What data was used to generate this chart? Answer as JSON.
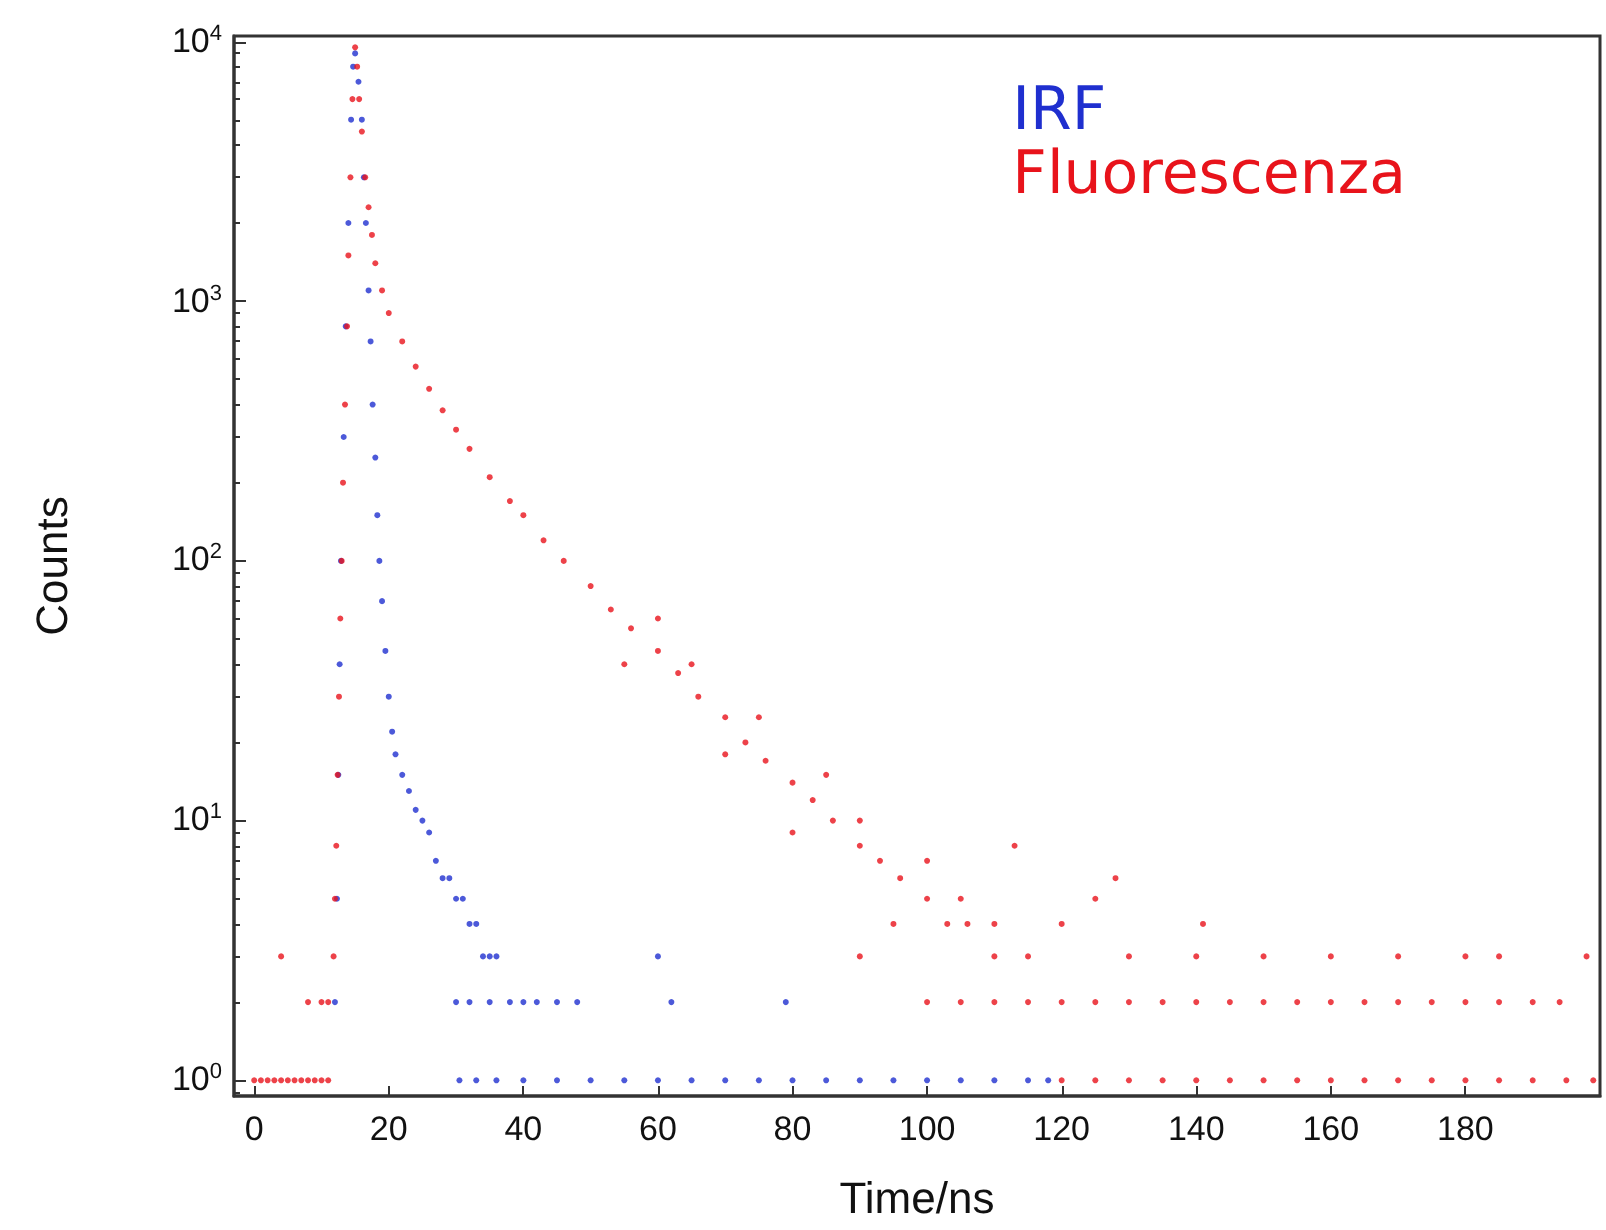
{
  "chart_data": {
    "type": "scatter",
    "xlabel": "Time/ns",
    "ylabel": "Counts",
    "log": "y",
    "grid": false,
    "legend": "top right",
    "marker": "circle",
    "xlim": [
      -3,
      200
    ],
    "xticks": [
      0,
      20,
      40,
      60,
      80,
      100,
      120,
      140,
      160,
      180
    ],
    "ylim": [
      0.87,
      10500
    ],
    "yticks": [
      {
        "value": 1,
        "label": "10$^{0}$"
      },
      {
        "value": 10,
        "label": "10$^{1}$"
      },
      {
        "value": 100,
        "label": "10$^{2}$"
      },
      {
        "value": 1000,
        "label": "10$^{3}$"
      },
      {
        "value": 10000,
        "label": "10$^{4}$"
      }
    ],
    "series": [
      {
        "name": "IRF",
        "color": "#1f2fcf",
        "x": [
          12,
          12.3,
          12.5,
          12.7,
          12.9,
          13.3,
          13.6,
          14,
          14.4,
          14.7,
          15,
          15.5,
          16,
          16.3,
          16.6,
          17,
          17.3,
          17.6,
          18,
          18.3,
          18.6,
          19,
          19.5,
          20,
          20.5,
          21,
          22,
          23,
          24,
          25,
          26,
          27,
          28,
          29,
          30,
          31,
          32,
          33,
          34,
          35,
          36,
          30,
          32,
          35,
          38,
          40,
          42,
          45,
          48,
          60,
          62,
          79,
          30.5,
          33,
          36,
          40,
          45,
          50,
          55,
          60,
          65,
          70,
          75,
          80,
          85,
          90,
          95,
          100,
          105,
          110,
          115,
          118
        ],
        "values": [
          2,
          5,
          15,
          40,
          100,
          300,
          800,
          2000,
          5000,
          8000,
          9000,
          7000,
          5000,
          3000,
          2000,
          1100,
          700,
          400,
          250,
          150,
          100,
          70,
          45,
          30,
          22,
          18,
          15,
          13,
          11,
          10,
          9,
          7,
          6,
          6,
          5,
          5,
          4,
          4,
          3,
          3,
          3,
          2,
          2,
          2,
          2,
          2,
          2,
          2,
          2,
          3,
          2,
          2,
          1,
          1,
          1,
          1,
          1,
          1,
          1,
          1,
          1,
          1,
          1,
          1,
          1,
          1,
          1,
          1,
          1,
          1,
          1,
          1
        ]
      },
      {
        "name": "Fluorescenza",
        "color": "#e8131b",
        "x": [
          0,
          1,
          2,
          3,
          4,
          5,
          6,
          7,
          8,
          9,
          10,
          11,
          4,
          8,
          10,
          11,
          11.8,
          12,
          12.2,
          12.4,
          12.6,
          12.8,
          13,
          13.2,
          13.5,
          13.8,
          14,
          14.3,
          14.6,
          15,
          15.3,
          15.6,
          16,
          16.5,
          17,
          17.5,
          18,
          19,
          20,
          22,
          24,
          26,
          28,
          30,
          32,
          35,
          38,
          40,
          43,
          46,
          50,
          53,
          56,
          60,
          63,
          66,
          70,
          73,
          76,
          80,
          83,
          86,
          90,
          93,
          96,
          100,
          103,
          106,
          110,
          115,
          55,
          60,
          65,
          70,
          75,
          80,
          85,
          90,
          90,
          95,
          100,
          105,
          110,
          113,
          120,
          125,
          128,
          141,
          130,
          140,
          150,
          160,
          170,
          180,
          185,
          198,
          100,
          105,
          110,
          115,
          120,
          125,
          130,
          135,
          140,
          145,
          150,
          155,
          160,
          165,
          170,
          175,
          180,
          185,
          190,
          194,
          120,
          125,
          130,
          135,
          140,
          145,
          150,
          155,
          160,
          165,
          170,
          175,
          180,
          185,
          190,
          195,
          199
        ],
        "values": [
          1,
          1,
          1,
          1,
          1,
          1,
          1,
          1,
          1,
          1,
          1,
          1,
          3,
          2,
          2,
          2,
          3,
          5,
          8,
          15,
          30,
          60,
          100,
          200,
          400,
          800,
          1500,
          3000,
          6000,
          9500,
          8000,
          6000,
          4500,
          3000,
          2300,
          1800,
          1400,
          1100,
          900,
          700,
          560,
          460,
          380,
          320,
          270,
          210,
          170,
          150,
          120,
          100,
          80,
          65,
          55,
          45,
          37,
          30,
          25,
          20,
          17,
          14,
          12,
          10,
          8,
          7,
          6,
          5,
          4,
          4,
          3,
          3,
          40,
          60,
          40,
          18,
          25,
          9,
          15,
          10,
          3,
          4,
          7,
          5,
          4,
          8,
          4,
          5,
          6,
          4,
          3,
          3,
          3,
          3,
          3,
          3,
          3,
          3,
          2,
          2,
          2,
          2,
          2,
          2,
          2,
          2,
          2,
          2,
          2,
          2,
          2,
          2,
          2,
          2,
          2,
          2,
          2,
          2,
          1,
          1,
          1,
          1,
          1,
          1,
          1,
          1,
          1,
          1,
          1,
          1,
          1,
          1,
          1,
          1,
          1
        ]
      }
    ]
  }
}
